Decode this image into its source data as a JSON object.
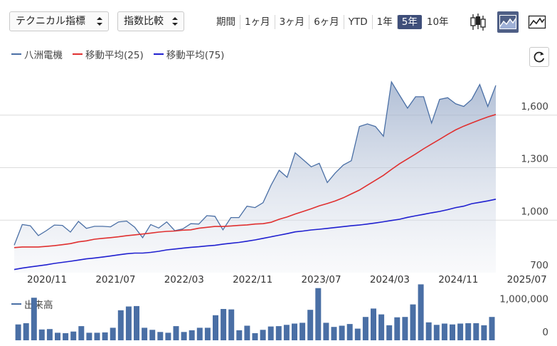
{
  "toolbar": {
    "technical_select": "テクニカル指標",
    "compare_select": "指数比較",
    "periods": [
      "期間",
      "1ヶ月",
      "3ヶ月",
      "6ヶ月",
      "YTD",
      "1年",
      "5年",
      "10年"
    ],
    "active_period": "5年",
    "accent_color": "#3f4f7a"
  },
  "chart_data": [
    {
      "type": "area",
      "series": [
        {
          "name": "八洲電機",
          "color": "#4a6fa5",
          "values": [
            857,
            975,
            968,
            912,
            940,
            972,
            970,
            932,
            993,
            953,
            965,
            965,
            962,
            990,
            995,
            960,
            900,
            975,
            955,
            990,
            940,
            950,
            980,
            978,
            1026,
            1022,
            945,
            1015,
            1015,
            1080,
            1072,
            1100,
            1200,
            1285,
            1245,
            1385,
            1345,
            1305,
            1325,
            1215,
            1270,
            1315,
            1340,
            1535,
            1550,
            1535,
            1480,
            1790,
            1715,
            1640,
            1705,
            1705,
            1555,
            1690,
            1700,
            1665,
            1650,
            1690,
            1775,
            1650,
            1770
          ]
        },
        {
          "name": "移動平均(25)",
          "color": "#e03030",
          "values": [
            843,
            847,
            847,
            847,
            850,
            854,
            860,
            866,
            876,
            882,
            891,
            896,
            900,
            905,
            911,
            916,
            921,
            926,
            932,
            936,
            938,
            943,
            945,
            954,
            959,
            964,
            964,
            967,
            970,
            973,
            978,
            980,
            988,
            1005,
            1018,
            1035,
            1050,
            1065,
            1082,
            1095,
            1110,
            1128,
            1150,
            1172,
            1200,
            1228,
            1256,
            1290,
            1322,
            1350,
            1378,
            1408,
            1435,
            1462,
            1490,
            1516,
            1537,
            1555,
            1573,
            1590,
            1604
          ]
        },
        {
          "name": "移動平均(75)",
          "color": "#2020d0",
          "values": [
            718,
            726,
            733,
            739,
            745,
            753,
            759,
            765,
            772,
            779,
            784,
            789,
            795,
            802,
            808,
            812,
            812,
            816,
            822,
            830,
            835,
            840,
            845,
            848,
            853,
            856,
            863,
            868,
            873,
            880,
            887,
            896,
            905,
            914,
            923,
            933,
            938,
            944,
            948,
            953,
            958,
            963,
            968,
            972,
            978,
            984,
            991,
            998,
            1005,
            1016,
            1025,
            1033,
            1042,
            1050,
            1060,
            1072,
            1080,
            1094,
            1102,
            1110,
            1120
          ]
        }
      ],
      "x_tick_labels": [
        "2020/11",
        "2021/07",
        "2022/03",
        "2022/11",
        "2023/07",
        "2024/03",
        "2024/11",
        "2025/07"
      ],
      "y_tick_labels": [
        "1,600",
        "1,300",
        "1,000",
        "700"
      ],
      "ylim": [
        700,
        1900
      ],
      "grid": true,
      "legend": "top-left"
    },
    {
      "type": "bar",
      "series": [
        {
          "name": "出来高",
          "color": "#4a6fa5",
          "values": [
            380000,
            410000,
            1020000,
            260000,
            270000,
            180000,
            170000,
            210000,
            340000,
            180000,
            180000,
            190000,
            300000,
            720000,
            810000,
            820000,
            300000,
            250000,
            200000,
            180000,
            340000,
            200000,
            240000,
            300000,
            300000,
            600000,
            750000,
            740000,
            240000,
            350000,
            170000,
            250000,
            330000,
            340000,
            370000,
            400000,
            420000,
            730000,
            1250000,
            420000,
            320000,
            350000,
            390000,
            280000,
            560000,
            760000,
            620000,
            360000,
            550000,
            560000,
            860000,
            1340000,
            430000,
            370000,
            400000,
            380000,
            400000,
            410000,
            410000,
            360000,
            560000
          ]
        }
      ],
      "y_tick_labels": [
        "1,000,000",
        "0"
      ],
      "ylim": [
        0,
        1330000
      ]
    }
  ]
}
